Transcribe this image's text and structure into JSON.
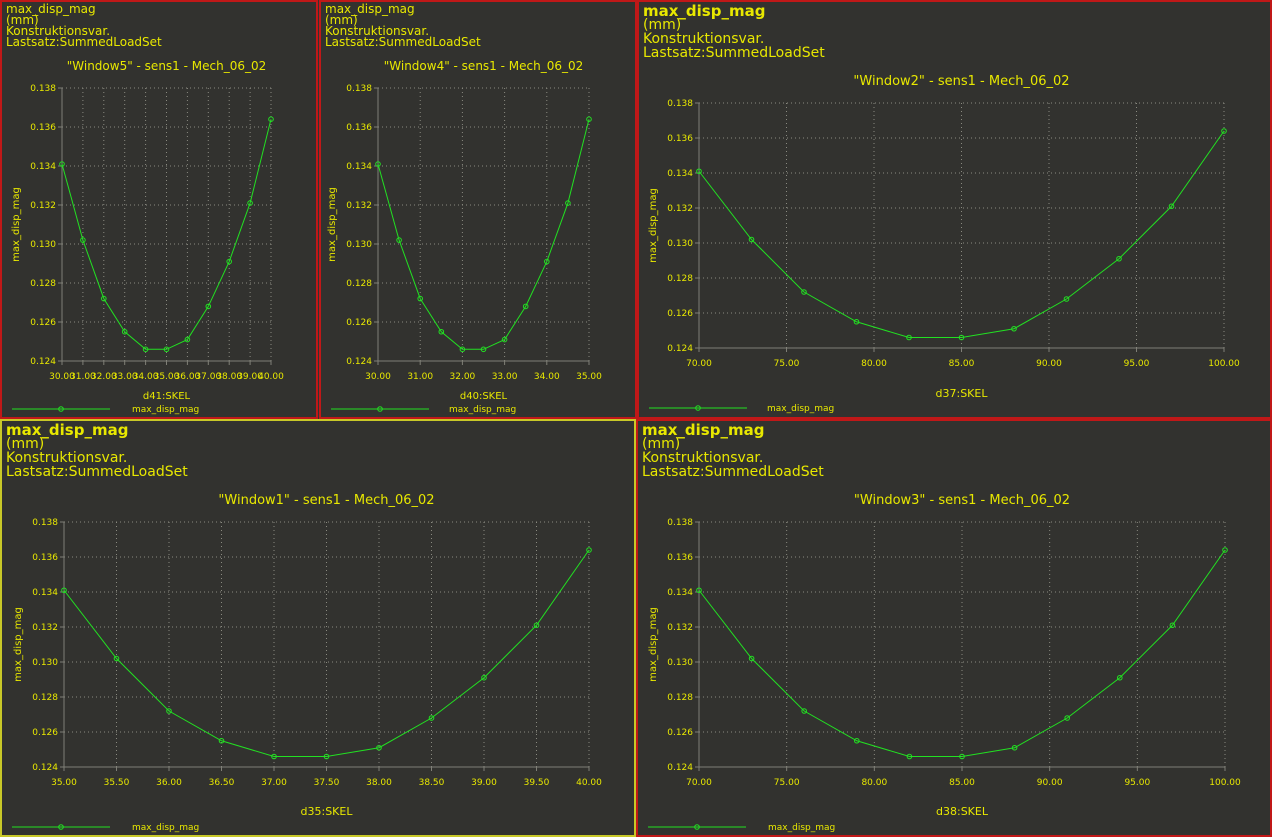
{
  "colors": {
    "background": "#32322f",
    "text": "#e8e800",
    "series": "#22e022",
    "axis": "#7f7f77",
    "grid": "#8a8a80",
    "border_inactive": "#c01818",
    "border_active": "#c8c828"
  },
  "chart_data": [
    {
      "window": "Window5",
      "type": "line",
      "header": [
        "max_disp_mag",
        "(mm)",
        "Konstruktionsvar.",
        "Lastsatz:SummedLoadSet"
      ],
      "title": "\"Window5\" - sens1 - Mech_06_02",
      "xlabel": "d41:SKEL",
      "ylabel": "max_disp_mag",
      "legend": "max_disp_mag",
      "xlim": [
        30,
        40
      ],
      "ylim": [
        0.124,
        0.138
      ],
      "xticks": [
        "30.00",
        "31.00",
        "32.00",
        "33.00",
        "34.00",
        "35.00",
        "36.00",
        "37.00",
        "38.00",
        "39.00",
        "40.00"
      ],
      "yticks": [
        "0.124",
        "0.126",
        "0.128",
        "0.130",
        "0.132",
        "0.134",
        "0.136",
        "0.138"
      ],
      "x": [
        30,
        31,
        32,
        33,
        34,
        35,
        36,
        37,
        38,
        39,
        40
      ],
      "y": [
        0.1341,
        0.1302,
        0.1272,
        0.1255,
        0.1246,
        0.1246,
        0.1251,
        0.1268,
        0.1291,
        0.1321,
        0.1364
      ]
    },
    {
      "window": "Window4",
      "type": "line",
      "header": [
        "max_disp_mag",
        "(mm)",
        "Konstruktionsvar.",
        "Lastsatz:SummedLoadSet"
      ],
      "title": "\"Window4\" - sens1 - Mech_06_02",
      "xlabel": "d40:SKEL",
      "ylabel": "max_disp_mag",
      "legend": "max_disp_mag",
      "xlim": [
        30,
        35
      ],
      "ylim": [
        0.124,
        0.138
      ],
      "xticks": [
        "30.00",
        "31.00",
        "32.00",
        "33.00",
        "34.00",
        "35.00"
      ],
      "yticks": [
        "0.124",
        "0.126",
        "0.128",
        "0.130",
        "0.132",
        "0.134",
        "0.136",
        "0.138"
      ],
      "x": [
        30,
        30.5,
        31,
        31.5,
        32,
        32.5,
        33,
        33.5,
        34,
        34.5,
        35
      ],
      "y": [
        0.1341,
        0.1302,
        0.1272,
        0.1255,
        0.1246,
        0.1246,
        0.1251,
        0.1268,
        0.1291,
        0.1321,
        0.1364
      ]
    },
    {
      "window": "Window2",
      "type": "line",
      "header": [
        "max_disp_mag",
        "(mm)",
        "Konstruktionsvar.",
        "Lastsatz:SummedLoadSet"
      ],
      "title": "\"Window2\" - sens1 - Mech_06_02",
      "xlabel": "d37:SKEL",
      "ylabel": "max_disp_mag",
      "legend": "max_disp_mag",
      "xlim": [
        70,
        100
      ],
      "ylim": [
        0.124,
        0.138
      ],
      "xticks": [
        "70.00",
        "75.00",
        "80.00",
        "85.00",
        "90.00",
        "95.00",
        "100.00"
      ],
      "yticks": [
        "0.124",
        "0.126",
        "0.128",
        "0.130",
        "0.132",
        "0.134",
        "0.136",
        "0.138"
      ],
      "x": [
        70,
        73,
        76,
        79,
        82,
        85,
        88,
        91,
        94,
        97,
        100
      ],
      "y": [
        0.1341,
        0.1302,
        0.1272,
        0.1255,
        0.1246,
        0.1246,
        0.1251,
        0.1268,
        0.1291,
        0.1321,
        0.1364
      ]
    },
    {
      "window": "Window1",
      "type": "line",
      "header": [
        "max_disp_mag",
        "(mm)",
        "Konstruktionsvar.",
        "Lastsatz:SummedLoadSet"
      ],
      "title": "\"Window1\" - sens1 - Mech_06_02",
      "xlabel": "d35:SKEL",
      "ylabel": "max_disp_mag",
      "legend": "max_disp_mag",
      "xlim": [
        35,
        40
      ],
      "ylim": [
        0.124,
        0.138
      ],
      "xticks": [
        "35.00",
        "35.50",
        "36.00",
        "36.50",
        "37.00",
        "37.50",
        "38.00",
        "38.50",
        "39.00",
        "39.50",
        "40.00"
      ],
      "yticks": [
        "0.124",
        "0.126",
        "0.128",
        "0.130",
        "0.132",
        "0.134",
        "0.136",
        "0.138"
      ],
      "x": [
        35,
        35.5,
        36,
        36.5,
        37,
        37.5,
        38,
        38.5,
        39,
        39.5,
        40
      ],
      "y": [
        0.1341,
        0.1302,
        0.1272,
        0.1255,
        0.1246,
        0.1246,
        0.1251,
        0.1268,
        0.1291,
        0.1321,
        0.1364
      ]
    },
    {
      "window": "Window3",
      "type": "line",
      "header": [
        "max_disp_mag",
        "(mm)",
        "Konstruktionsvar.",
        "Lastsatz:SummedLoadSet"
      ],
      "title": "\"Window3\" - sens1 - Mech_06_02",
      "xlabel": "d38:SKEL",
      "ylabel": "max_disp_mag",
      "legend": "max_disp_mag",
      "xlim": [
        70,
        100
      ],
      "ylim": [
        0.124,
        0.138
      ],
      "xticks": [
        "70.00",
        "75.00",
        "80.00",
        "85.00",
        "90.00",
        "95.00",
        "100.00"
      ],
      "yticks": [
        "0.124",
        "0.126",
        "0.128",
        "0.130",
        "0.132",
        "0.134",
        "0.136",
        "0.138"
      ],
      "x": [
        70,
        73,
        76,
        79,
        82,
        85,
        88,
        91,
        94,
        97,
        100
      ],
      "y": [
        0.1341,
        0.1302,
        0.1272,
        0.1255,
        0.1246,
        0.1246,
        0.1251,
        0.1268,
        0.1291,
        0.1321,
        0.1364
      ]
    }
  ]
}
